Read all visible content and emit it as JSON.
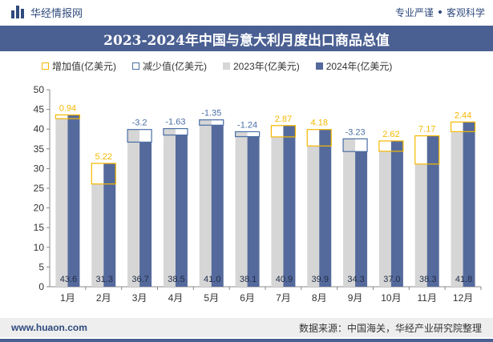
{
  "header": {
    "brand_name": "华经情报网",
    "slogan_left": "专业严谨",
    "slogan_right": "客观科学"
  },
  "footer": {
    "website": "www.huaon.com",
    "source": "数据来源：中国海关，华经产业研究院整理"
  },
  "colors": {
    "increase": "#f5b800",
    "decrease": "#4a6fa5",
    "y2023": "#d6d6d6",
    "y2024": "#556a9c",
    "titlebar": "#4a5f92"
  },
  "chart_data": {
    "type": "bar",
    "title": "2023-2024年中国与意大利月度出口商品总值",
    "legend": [
      "增加值(亿美元)",
      "减少值(亿美元)",
      "2023年(亿美元)",
      "2024年(亿美元)"
    ],
    "legend_position": "top-left",
    "grid": false,
    "categories": [
      "1月",
      "2月",
      "3月",
      "4月",
      "5月",
      "6月",
      "7月",
      "8月",
      "9月",
      "10月",
      "11月",
      "12月"
    ],
    "ylim": [
      0,
      50
    ],
    "yticks": [
      0,
      5,
      10,
      15,
      20,
      25,
      30,
      35,
      40,
      45,
      50
    ],
    "series": [
      {
        "name": "2023年(亿美元)",
        "values": [
          42.66,
          26.08,
          39.9,
          40.13,
          42.35,
          39.34,
          38.03,
          35.72,
          37.53,
          34.38,
          31.13,
          39.36
        ]
      },
      {
        "name": "2024年(亿美元)",
        "values": [
          43.6,
          31.3,
          36.7,
          38.5,
          41.0,
          38.1,
          40.9,
          39.9,
          34.3,
          37.0,
          38.3,
          41.8
        ]
      }
    ],
    "changes": [
      {
        "label": "0.94",
        "value": 0.94,
        "type": "increase"
      },
      {
        "label": "5.22",
        "value": 5.22,
        "type": "increase"
      },
      {
        "label": "-3.2",
        "value": -3.2,
        "type": "decrease"
      },
      {
        "label": "-1.63",
        "value": -1.63,
        "type": "decrease"
      },
      {
        "label": "-1.35",
        "value": -1.35,
        "type": "decrease"
      },
      {
        "label": "-1.24",
        "value": -1.24,
        "type": "decrease"
      },
      {
        "label": "2.87",
        "value": 2.87,
        "type": "increase"
      },
      {
        "label": "4.18",
        "value": 4.18,
        "type": "increase"
      },
      {
        "label": "-3.23",
        "value": -3.23,
        "type": "decrease"
      },
      {
        "label": "2.62",
        "value": 2.62,
        "type": "increase"
      },
      {
        "label": "7.17",
        "value": 7.17,
        "type": "increase"
      },
      {
        "label": "2.44",
        "value": 2.44,
        "type": "increase"
      }
    ],
    "value_labels_2024": [
      "43.6",
      "31.3",
      "36.7",
      "38.5",
      "41.0",
      "38.1",
      "40.9",
      "39.9",
      "34.3",
      "37.0",
      "38.3",
      "41.8"
    ]
  }
}
